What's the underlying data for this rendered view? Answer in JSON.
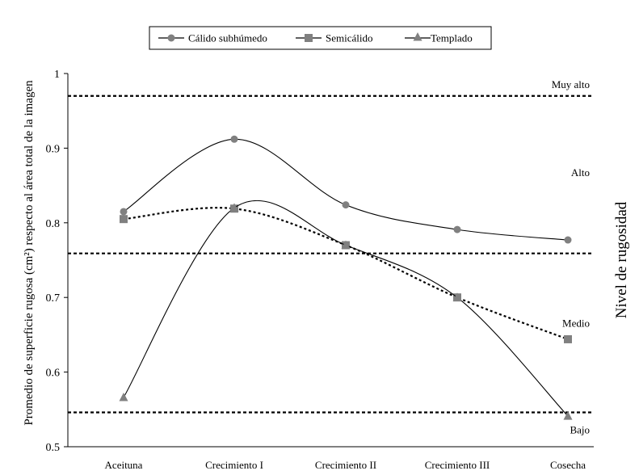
{
  "chart_data": {
    "type": "line",
    "ylabel": "Promedio de superficie rugosa (cm²) respecto al área total de la imagen",
    "y2label": "Nivel de rugosidad",
    "ylim": [
      0.5,
      1.0
    ],
    "yticks": [
      "0.5",
      "0.6",
      "0.7",
      "0.8",
      "0.9",
      "1"
    ],
    "categories": [
      "Aceituna",
      "Crecimiento I",
      "Crecimiento II",
      "Crecimiento III",
      "Cosecha"
    ],
    "legend_position": "top-center",
    "series": [
      {
        "name": "Cálido subhúmedo",
        "values": [
          0.815,
          0.912,
          0.824,
          0.791,
          0.777
        ],
        "marker": "circle",
        "line": "solid",
        "smooth": true,
        "color": "#808080"
      },
      {
        "name": "Semicálido",
        "values": [
          0.805,
          0.819,
          0.77,
          0.7,
          0.644
        ],
        "marker": "square",
        "line": "dotted",
        "smooth": true,
        "color": "#808080"
      },
      {
        "name": "Templado",
        "values": [
          0.566,
          0.82,
          0.77,
          0.7,
          0.541
        ],
        "marker": "triangle",
        "line": "solid",
        "smooth": true,
        "color": "#808080"
      }
    ],
    "threshold_lines": [
      0.97,
      0.759,
      0.546
    ],
    "level_labels": [
      {
        "label": "Muy alto",
        "value": 0.985
      },
      {
        "label": "Alto",
        "value": 0.867
      },
      {
        "label": "Medio",
        "value": 0.665
      },
      {
        "label": "Bajo",
        "value": 0.522
      }
    ]
  }
}
